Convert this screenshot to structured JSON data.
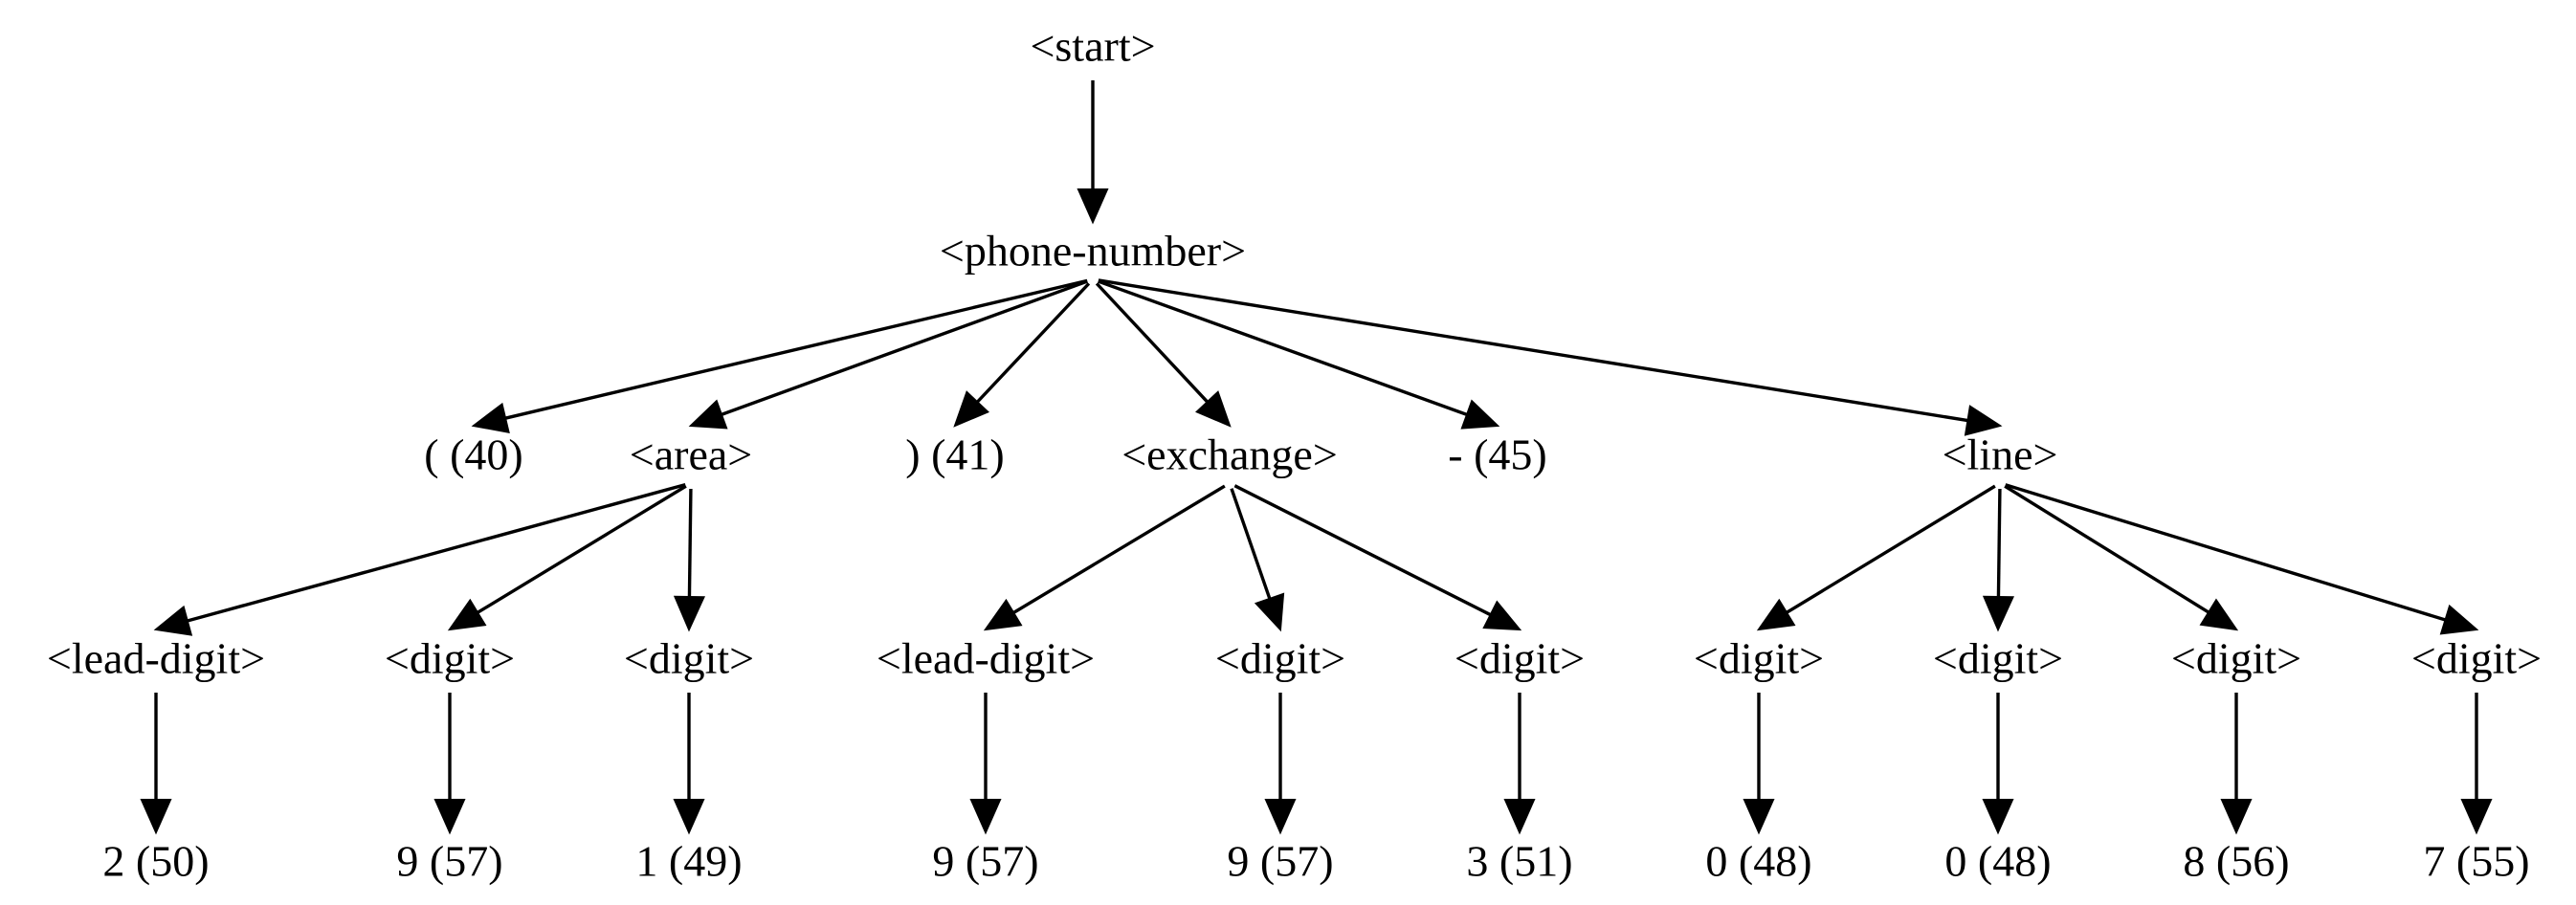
{
  "nodes": [
    {
      "id": "start",
      "label": "<start>"
    },
    {
      "id": "phone",
      "label": "<phone-number>"
    },
    {
      "id": "lparen",
      "label": "( (40)"
    },
    {
      "id": "area",
      "label": "<area>"
    },
    {
      "id": "rparen",
      "label": ") (41)"
    },
    {
      "id": "exchange",
      "label": "<exchange>"
    },
    {
      "id": "dash",
      "label": "- (45)"
    },
    {
      "id": "line",
      "label": "<line>"
    },
    {
      "id": "area_lead",
      "label": "<lead-digit>"
    },
    {
      "id": "area_d1",
      "label": "<digit>"
    },
    {
      "id": "area_d2",
      "label": "<digit>"
    },
    {
      "id": "ex_lead",
      "label": "<lead-digit>"
    },
    {
      "id": "ex_d1",
      "label": "<digit>"
    },
    {
      "id": "ex_d2",
      "label": "<digit>"
    },
    {
      "id": "line_d1",
      "label": "<digit>"
    },
    {
      "id": "line_d2",
      "label": "<digit>"
    },
    {
      "id": "line_d3",
      "label": "<digit>"
    },
    {
      "id": "line_d4",
      "label": "<digit>"
    },
    {
      "id": "v_area_lead",
      "label": "2 (50)"
    },
    {
      "id": "v_area_d1",
      "label": "9 (57)"
    },
    {
      "id": "v_area_d2",
      "label": "1 (49)"
    },
    {
      "id": "v_ex_lead",
      "label": "9 (57)"
    },
    {
      "id": "v_ex_d1",
      "label": "9 (57)"
    },
    {
      "id": "v_ex_d2",
      "label": "3 (51)"
    },
    {
      "id": "v_line_d1",
      "label": "0 (48)"
    },
    {
      "id": "v_line_d2",
      "label": "0 (48)"
    },
    {
      "id": "v_line_d3",
      "label": "8 (56)"
    },
    {
      "id": "v_line_d4",
      "label": "7 (55)"
    }
  ],
  "edges": [
    {
      "from": "start",
      "to": "phone"
    },
    {
      "from": "phone",
      "to": "lparen"
    },
    {
      "from": "phone",
      "to": "area"
    },
    {
      "from": "phone",
      "to": "rparen"
    },
    {
      "from": "phone",
      "to": "exchange"
    },
    {
      "from": "phone",
      "to": "dash"
    },
    {
      "from": "phone",
      "to": "line"
    },
    {
      "from": "area",
      "to": "area_lead"
    },
    {
      "from": "area",
      "to": "area_d1"
    },
    {
      "from": "area",
      "to": "area_d2"
    },
    {
      "from": "exchange",
      "to": "ex_lead"
    },
    {
      "from": "exchange",
      "to": "ex_d1"
    },
    {
      "from": "exchange",
      "to": "ex_d2"
    },
    {
      "from": "line",
      "to": "line_d1"
    },
    {
      "from": "line",
      "to": "line_d2"
    },
    {
      "from": "line",
      "to": "line_d3"
    },
    {
      "from": "line",
      "to": "line_d4"
    },
    {
      "from": "area_lead",
      "to": "v_area_lead"
    },
    {
      "from": "area_d1",
      "to": "v_area_d1"
    },
    {
      "from": "area_d2",
      "to": "v_area_d2"
    },
    {
      "from": "ex_lead",
      "to": "v_ex_lead"
    },
    {
      "from": "ex_d1",
      "to": "v_ex_d1"
    },
    {
      "from": "ex_d2",
      "to": "v_ex_d2"
    },
    {
      "from": "line_d1",
      "to": "v_line_d1"
    },
    {
      "from": "line_d2",
      "to": "v_line_d2"
    },
    {
      "from": "line_d3",
      "to": "v_line_d3"
    },
    {
      "from": "line_d4",
      "to": "v_line_d4"
    }
  ]
}
